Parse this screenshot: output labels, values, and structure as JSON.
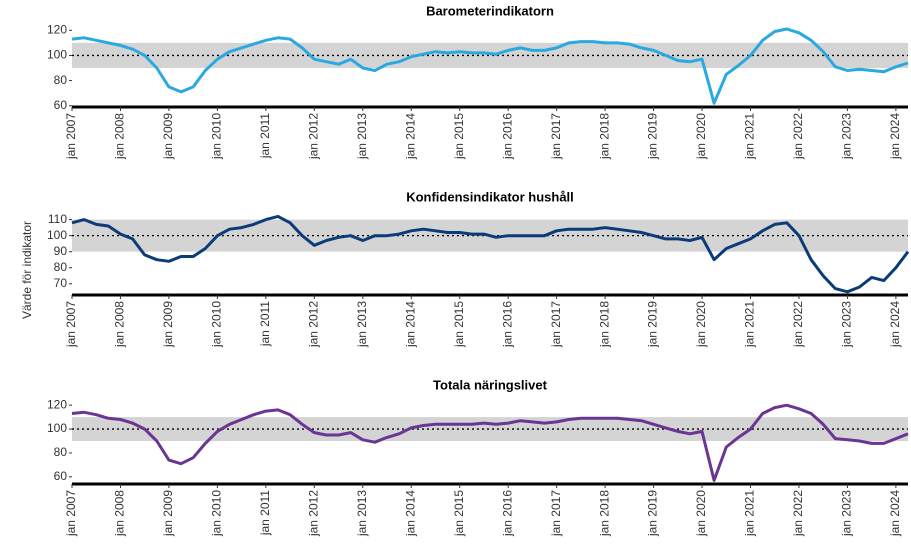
{
  "y_label": "Värde för indikator",
  "chart_data": [
    {
      "type": "line",
      "title": "Barometerindikatorn",
      "color": "#29a9e0",
      "x": [
        "2007-01",
        "2007-04",
        "2007-07",
        "2007-10",
        "2008-01",
        "2008-04",
        "2008-07",
        "2008-10",
        "2009-01",
        "2009-04",
        "2009-07",
        "2009-10",
        "2010-01",
        "2010-04",
        "2010-07",
        "2010-10",
        "2011-01",
        "2011-04",
        "2011-07",
        "2011-10",
        "2012-01",
        "2012-04",
        "2012-07",
        "2012-10",
        "2013-01",
        "2013-04",
        "2013-07",
        "2013-10",
        "2014-01",
        "2014-04",
        "2014-07",
        "2014-10",
        "2015-01",
        "2015-04",
        "2015-07",
        "2015-10",
        "2016-01",
        "2016-04",
        "2016-07",
        "2016-10",
        "2017-01",
        "2017-04",
        "2017-07",
        "2017-10",
        "2018-01",
        "2018-04",
        "2018-07",
        "2018-10",
        "2019-01",
        "2019-04",
        "2019-07",
        "2019-10",
        "2020-01",
        "2020-04",
        "2020-07",
        "2020-10",
        "2021-01",
        "2021-04",
        "2021-07",
        "2021-10",
        "2022-01",
        "2022-04",
        "2022-07",
        "2022-10",
        "2023-01",
        "2023-04",
        "2023-07",
        "2023-10",
        "2024-01",
        "2024-04"
      ],
      "values": [
        113,
        114,
        112,
        110,
        108,
        105,
        100,
        90,
        75,
        71,
        75,
        88,
        97,
        103,
        106,
        109,
        112,
        114,
        113,
        106,
        97,
        95,
        93,
        97,
        90,
        88,
        93,
        95,
        99,
        101,
        103,
        102,
        103,
        102,
        102,
        101,
        104,
        106,
        104,
        104,
        106,
        110,
        111,
        111,
        110,
        110,
        109,
        106,
        104,
        100,
        96,
        95,
        97,
        62,
        85,
        92,
        100,
        112,
        119,
        121,
        118,
        112,
        103,
        91,
        88,
        89,
        88,
        87,
        91,
        94
      ],
      "xlim": [
        "2007-01",
        "2024-04"
      ],
      "ylim": [
        59,
        125
      ],
      "yticks": [
        60,
        80,
        100,
        120
      ],
      "band": [
        90,
        110
      ],
      "reference_line": 100,
      "xticks": [
        {
          "value": "2007-01",
          "label": "jan 2007"
        },
        {
          "value": "2008-01",
          "label": "jan 2008"
        },
        {
          "value": "2009-01",
          "label": "jan 2009"
        },
        {
          "value": "2010-01",
          "label": "jan 2010"
        },
        {
          "value": "2011-01",
          "label": "jan 2011"
        },
        {
          "value": "2012-01",
          "label": "jan 2012"
        },
        {
          "value": "2013-01",
          "label": "jan 2013"
        },
        {
          "value": "2014-01",
          "label": "jan 2014"
        },
        {
          "value": "2015-01",
          "label": "jan 2015"
        },
        {
          "value": "2016-01",
          "label": "jan 2016"
        },
        {
          "value": "2017-01",
          "label": "jan 2017"
        },
        {
          "value": "2018-01",
          "label": "jan 2018"
        },
        {
          "value": "2019-01",
          "label": "jan 2019"
        },
        {
          "value": "2020-01",
          "label": "jan 2020"
        },
        {
          "value": "2021-01",
          "label": "jan 2021"
        },
        {
          "value": "2022-01",
          "label": "jan 2022"
        },
        {
          "value": "2023-01",
          "label": "jan 2023"
        },
        {
          "value": "2024-01",
          "label": "jan 2024"
        }
      ]
    },
    {
      "type": "line",
      "title": "Konfidensindikator hushåll",
      "color": "#0b3c78",
      "x": [
        "2007-01",
        "2007-04",
        "2007-07",
        "2007-10",
        "2008-01",
        "2008-04",
        "2008-07",
        "2008-10",
        "2009-01",
        "2009-04",
        "2009-07",
        "2009-10",
        "2010-01",
        "2010-04",
        "2010-07",
        "2010-10",
        "2011-01",
        "2011-04",
        "2011-07",
        "2011-10",
        "2012-01",
        "2012-04",
        "2012-07",
        "2012-10",
        "2013-01",
        "2013-04",
        "2013-07",
        "2013-10",
        "2014-01",
        "2014-04",
        "2014-07",
        "2014-10",
        "2015-01",
        "2015-04",
        "2015-07",
        "2015-10",
        "2016-01",
        "2016-04",
        "2016-07",
        "2016-10",
        "2017-01",
        "2017-04",
        "2017-07",
        "2017-10",
        "2018-01",
        "2018-04",
        "2018-07",
        "2018-10",
        "2019-01",
        "2019-04",
        "2019-07",
        "2019-10",
        "2020-01",
        "2020-04",
        "2020-07",
        "2020-10",
        "2021-01",
        "2021-04",
        "2021-07",
        "2021-10",
        "2022-01",
        "2022-04",
        "2022-07",
        "2022-10",
        "2023-01",
        "2023-04",
        "2023-07",
        "2023-10",
        "2024-01",
        "2024-04"
      ],
      "values": [
        108,
        110,
        107,
        106,
        101,
        98,
        88,
        85,
        84,
        87,
        87,
        92,
        100,
        104,
        105,
        107,
        110,
        112,
        108,
        100,
        94,
        97,
        99,
        100,
        97,
        100,
        100,
        101,
        103,
        104,
        103,
        102,
        102,
        101,
        101,
        99,
        100,
        100,
        100,
        100,
        103,
        104,
        104,
        104,
        105,
        104,
        103,
        102,
        100,
        98,
        98,
        97,
        99,
        85,
        92,
        95,
        98,
        103,
        107,
        108,
        100,
        85,
        75,
        67,
        65,
        68,
        74,
        72,
        80,
        90
      ],
      "xlim": [
        "2007-01",
        "2024-04"
      ],
      "ylim": [
        63,
        116
      ],
      "yticks": [
        70,
        80,
        90,
        100,
        110
      ],
      "band": [
        90,
        110
      ],
      "reference_line": 100,
      "xticks": [
        {
          "value": "2007-01",
          "label": "jan 2007"
        },
        {
          "value": "2008-01",
          "label": "jan 2008"
        },
        {
          "value": "2009-01",
          "label": "jan 2009"
        },
        {
          "value": "2010-01",
          "label": "jan 2010"
        },
        {
          "value": "2011-01",
          "label": "jan 2011"
        },
        {
          "value": "2012-01",
          "label": "jan 2012"
        },
        {
          "value": "2013-01",
          "label": "jan 2013"
        },
        {
          "value": "2014-01",
          "label": "jan 2014"
        },
        {
          "value": "2015-01",
          "label": "jan 2015"
        },
        {
          "value": "2016-01",
          "label": "jan 2016"
        },
        {
          "value": "2017-01",
          "label": "jan 2017"
        },
        {
          "value": "2018-01",
          "label": "jan 2018"
        },
        {
          "value": "2019-01",
          "label": "jan 2019"
        },
        {
          "value": "2020-01",
          "label": "jan 2020"
        },
        {
          "value": "2021-01",
          "label": "jan 2021"
        },
        {
          "value": "2022-01",
          "label": "jan 2022"
        },
        {
          "value": "2023-01",
          "label": "jan 2023"
        },
        {
          "value": "2024-01",
          "label": "jan 2024"
        }
      ]
    },
    {
      "type": "line",
      "title": "Totala näringslivet",
      "color": "#6b3593",
      "x": [
        "2007-01",
        "2007-04",
        "2007-07",
        "2007-10",
        "2008-01",
        "2008-04",
        "2008-07",
        "2008-10",
        "2009-01",
        "2009-04",
        "2009-07",
        "2009-10",
        "2010-01",
        "2010-04",
        "2010-07",
        "2010-10",
        "2011-01",
        "2011-04",
        "2011-07",
        "2011-10",
        "2012-01",
        "2012-04",
        "2012-07",
        "2012-10",
        "2013-01",
        "2013-04",
        "2013-07",
        "2013-10",
        "2014-01",
        "2014-04",
        "2014-07",
        "2014-10",
        "2015-01",
        "2015-04",
        "2015-07",
        "2015-10",
        "2016-01",
        "2016-04",
        "2016-07",
        "2016-10",
        "2017-01",
        "2017-04",
        "2017-07",
        "2017-10",
        "2018-01",
        "2018-04",
        "2018-07",
        "2018-10",
        "2019-01",
        "2019-04",
        "2019-07",
        "2019-10",
        "2020-01",
        "2020-04",
        "2020-07",
        "2020-10",
        "2021-01",
        "2021-04",
        "2021-07",
        "2021-10",
        "2022-01",
        "2022-04",
        "2022-07",
        "2022-10",
        "2023-01",
        "2023-04",
        "2023-07",
        "2023-10",
        "2024-01",
        "2024-04"
      ],
      "values": [
        113,
        114,
        112,
        109,
        108,
        105,
        100,
        90,
        74,
        71,
        76,
        88,
        98,
        104,
        108,
        112,
        115,
        116,
        112,
        104,
        97,
        95,
        95,
        97,
        91,
        89,
        93,
        96,
        101,
        103,
        104,
        104,
        104,
        104,
        105,
        104,
        105,
        107,
        106,
        105,
        106,
        108,
        109,
        109,
        109,
        109,
        108,
        107,
        104,
        101,
        98,
        96,
        98,
        57,
        85,
        93,
        100,
        113,
        118,
        120,
        117,
        113,
        104,
        92,
        91,
        90,
        88,
        88,
        92,
        96
      ],
      "xlim": [
        "2007-01",
        "2024-04"
      ],
      "ylim": [
        54,
        126
      ],
      "yticks": [
        60,
        80,
        100,
        120
      ],
      "band": [
        90,
        110
      ],
      "reference_line": 100,
      "xticks": [
        {
          "value": "2007-01",
          "label": "jan 2007"
        },
        {
          "value": "2008-01",
          "label": "jan 2008"
        },
        {
          "value": "2009-01",
          "label": "jan 2009"
        },
        {
          "value": "2010-01",
          "label": "jan 2010"
        },
        {
          "value": "2011-01",
          "label": "jan 2011"
        },
        {
          "value": "2012-01",
          "label": "jan 2012"
        },
        {
          "value": "2013-01",
          "label": "jan 2013"
        },
        {
          "value": "2014-01",
          "label": "jan 2014"
        },
        {
          "value": "2015-01",
          "label": "jan 2015"
        },
        {
          "value": "2016-01",
          "label": "jan 2016"
        },
        {
          "value": "2017-01",
          "label": "jan 2017"
        },
        {
          "value": "2018-01",
          "label": "jan 2018"
        },
        {
          "value": "2019-01",
          "label": "jan 2019"
        },
        {
          "value": "2020-01",
          "label": "jan 2020"
        },
        {
          "value": "2021-01",
          "label": "jan 2021"
        },
        {
          "value": "2022-01",
          "label": "jan 2022"
        },
        {
          "value": "2023-01",
          "label": "jan 2023"
        },
        {
          "value": "2024-01",
          "label": "jan 2024"
        }
      ]
    }
  ]
}
